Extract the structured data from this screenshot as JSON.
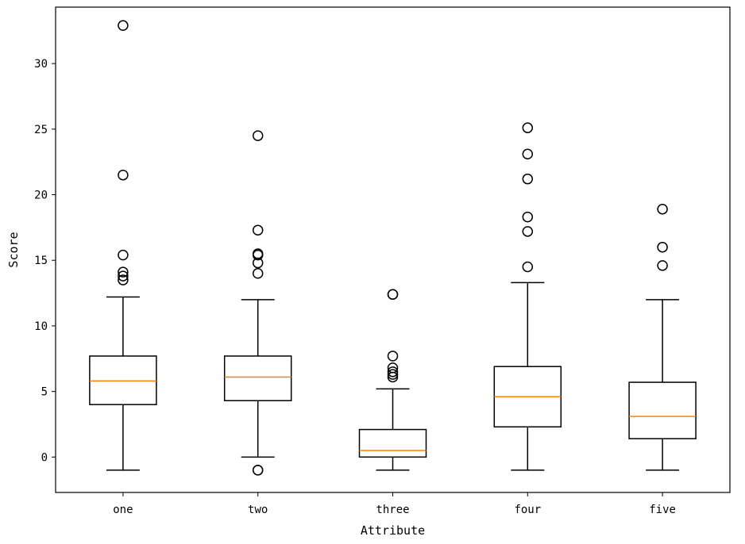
{
  "chart_data": {
    "type": "box",
    "title": "",
    "xlabel": "Attribute",
    "ylabel": "Score",
    "ylim": [
      -2.7,
      34.3
    ],
    "yticks": [
      0,
      5,
      10,
      15,
      20,
      25,
      30
    ],
    "ytick_labels": [
      "0",
      "5",
      "10",
      "15",
      "20",
      "25",
      "30"
    ],
    "categories": [
      "one",
      "two",
      "three",
      "four",
      "five"
    ],
    "series": [
      {
        "name": "one",
        "whisker_low": -1,
        "q1": 4.0,
        "median": 5.8,
        "q3": 7.7,
        "whisker_high": 12.2,
        "outliers": [
          32.9,
          21.5,
          15.4,
          14.1,
          13.8,
          13.5
        ]
      },
      {
        "name": "two",
        "whisker_low": 0,
        "q1": 4.3,
        "median": 6.1,
        "q3": 7.7,
        "whisker_high": 12.0,
        "outliers": [
          24.5,
          17.3,
          15.5,
          15.4,
          14.8,
          14.0,
          -1.0,
          -1.0
        ]
      },
      {
        "name": "three",
        "whisker_low": -1,
        "q1": 0.0,
        "median": 0.5,
        "q3": 2.1,
        "whisker_high": 5.2,
        "outliers": [
          12.4,
          12.4,
          7.7,
          6.8,
          6.5,
          6.3,
          6.1
        ]
      },
      {
        "name": "four",
        "whisker_low": -1,
        "q1": 2.3,
        "median": 4.6,
        "q3": 6.9,
        "whisker_high": 13.3,
        "outliers": [
          25.1,
          23.1,
          21.2,
          18.3,
          17.2,
          14.5
        ]
      },
      {
        "name": "five",
        "whisker_low": -1,
        "q1": 1.4,
        "median": 3.1,
        "q3": 5.7,
        "whisker_high": 12.0,
        "outliers": [
          18.9,
          16.0,
          14.6
        ]
      }
    ],
    "colors": {
      "box": "#000000",
      "median": "#ff7f0e",
      "outlier": "#000000"
    },
    "grid": false,
    "legend": "none"
  }
}
